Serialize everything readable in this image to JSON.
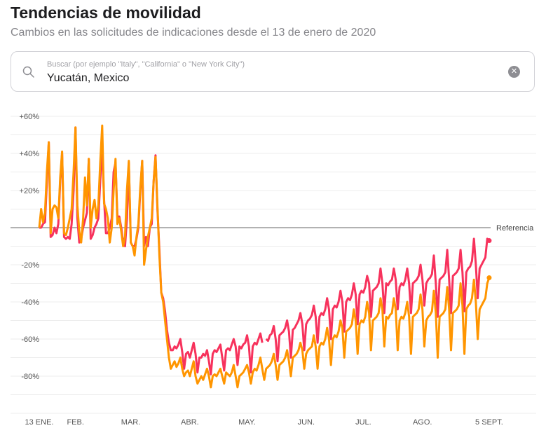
{
  "header": {
    "title": "Tendencias de movilidad",
    "subtitle": "Cambios en las solicitudes de indicaciones desde el 13 de enero de 2020"
  },
  "search": {
    "placeholder": "Buscar (por ejemplo \"Italy\", \"California\" o \"New York City\")",
    "value": "Yucatán, Mexico",
    "icon": "search-icon",
    "clear_icon": "clear-icon"
  },
  "chart_data": {
    "type": "line",
    "dates": {
      "start": "2020-01-13",
      "end": "2020-09-05",
      "step": "1 day"
    },
    "ylim": [
      -100,
      60
    ],
    "grid": true,
    "y_ticks": [
      {
        "value": 60,
        "label": "+60%"
      },
      {
        "value": 40,
        "label": "+40%"
      },
      {
        "value": 20,
        "label": "+20%"
      },
      {
        "value": -20,
        "label": "-20%"
      },
      {
        "value": -40,
        "label": "-40%"
      },
      {
        "value": -60,
        "label": "-60%"
      },
      {
        "value": -80,
        "label": "-80%"
      }
    ],
    "x_ticks": [
      {
        "day": 0,
        "label": "13 ENE."
      },
      {
        "day": 19,
        "label": "FEB."
      },
      {
        "day": 48,
        "label": "MAR."
      },
      {
        "day": 79,
        "label": "ABR."
      },
      {
        "day": 109,
        "label": "MAY."
      },
      {
        "day": 140,
        "label": "JUN."
      },
      {
        "day": 170,
        "label": "JUL."
      },
      {
        "day": 201,
        "label": "AGO."
      },
      {
        "day": 236,
        "label": "5 SEPT."
      }
    ],
    "baseline": {
      "value": 0,
      "label": "Referencia"
    },
    "series": [
      {
        "color": "#f7325c",
        "values": [
          0,
          0,
          2,
          3,
          25,
          46,
          -5,
          -4,
          0,
          -3,
          2,
          25,
          40,
          -5,
          -6,
          -5,
          -6,
          2,
          20,
          54,
          5,
          -8,
          -6,
          0,
          4,
          8,
          37,
          -6,
          -4,
          0,
          2,
          5,
          25,
          44,
          15,
          -3,
          -3,
          0,
          5,
          30,
          35,
          6,
          6,
          0,
          -8,
          -10,
          5,
          35,
          -8,
          -10,
          -10,
          -6,
          0,
          20,
          36,
          -10,
          -5,
          -10,
          0,
          2,
          25,
          39,
          10,
          -12,
          -35,
          -38,
          -45,
          -55,
          -62,
          -66,
          -66,
          -64,
          -65,
          -63,
          -60,
          -67,
          -76,
          -68,
          -67,
          -70,
          -66,
          -62,
          -68,
          -78,
          -70,
          -70,
          -68,
          -69,
          -66,
          -72,
          -79,
          -68,
          -66,
          -67,
          -65,
          -63,
          -70,
          -77,
          -66,
          -65,
          -66,
          -63,
          -60,
          -64,
          -74,
          -64,
          -65,
          -63,
          -62,
          -58,
          -64,
          -78,
          -64,
          -62,
          -63,
          -60,
          -57,
          -62,
          null,
          -60,
          -61,
          -58,
          -57,
          -53,
          -60,
          -72,
          -58,
          -57,
          -56,
          -54,
          -50,
          -56,
          -70,
          -55,
          -54,
          -52,
          -50,
          -46,
          -52,
          -66,
          -52,
          -50,
          -49,
          -47,
          -42,
          -48,
          -62,
          -48,
          -46,
          -47,
          -44,
          -38,
          -44,
          -60,
          -44,
          -42,
          -43,
          -40,
          -34,
          -40,
          -56,
          -40,
          -38,
          -39,
          -36,
          -30,
          -36,
          -52,
          -36,
          -34,
          -35,
          -32,
          -26,
          -30,
          -48,
          -34,
          -33,
          -32,
          -30,
          -22,
          -30,
          -46,
          -30,
          -31,
          -29,
          -28,
          -22,
          -28,
          -44,
          -32,
          -30,
          -31,
          -28,
          -22,
          -30,
          -46,
          -30,
          -29,
          -28,
          -26,
          -20,
          -28,
          -42,
          -30,
          -28,
          -27,
          -25,
          -15,
          -30,
          -48,
          -28,
          -27,
          -26,
          -24,
          -12,
          -28,
          -46,
          -26,
          -25,
          -24,
          -22,
          -12,
          -24,
          -45,
          -24,
          -22,
          -21,
          -18,
          -6,
          -20,
          -38,
          -22,
          -20,
          -18,
          -16,
          -6,
          -7
        ]
      },
      {
        "color": "#ff9500",
        "values": [
          0,
          10,
          3,
          8,
          30,
          46,
          -3,
          10,
          12,
          11,
          5,
          27,
          41,
          -3,
          -4,
          0,
          5,
          10,
          30,
          54,
          12,
          -2,
          -8,
          5,
          27,
          12,
          37,
          0,
          10,
          15,
          5,
          12,
          35,
          55,
          13,
          10,
          5,
          -8,
          0,
          20,
          37,
          2,
          5,
          -2,
          -10,
          -5,
          20,
          36,
          -8,
          -10,
          -15,
          -5,
          2,
          22,
          36,
          -20,
          -12,
          -5,
          0,
          5,
          25,
          38,
          12,
          -15,
          -35,
          -40,
          -50,
          -60,
          -70,
          -76,
          -74,
          -72,
          -75,
          -73,
          -70,
          -76,
          -80,
          -78,
          -77,
          -80,
          -76,
          -72,
          -80,
          -84,
          -82,
          -80,
          -82,
          -79,
          -76,
          -80,
          -86,
          -80,
          -79,
          -80,
          -78,
          -76,
          -80,
          -84,
          -78,
          -79,
          -80,
          -78,
          -74,
          -80,
          -86,
          -80,
          -79,
          -78,
          -76,
          -74,
          -78,
          -84,
          -78,
          -76,
          -77,
          -74,
          -70,
          -76,
          -82,
          -76,
          -75,
          -74,
          -72,
          -68,
          -74,
          -82,
          -74,
          -73,
          -72,
          -70,
          -66,
          -72,
          -80,
          -70,
          -69,
          -68,
          -66,
          -62,
          -66,
          -76,
          -68,
          -66,
          -65,
          -64,
          -58,
          -64,
          -76,
          -64,
          -62,
          -63,
          -60,
          -54,
          -60,
          -74,
          -60,
          -58,
          -59,
          -56,
          -50,
          -54,
          -70,
          -56,
          -55,
          -54,
          -52,
          -44,
          -50,
          -68,
          -52,
          -50,
          -51,
          -48,
          -40,
          -46,
          -66,
          -50,
          -49,
          -48,
          -46,
          -38,
          -44,
          -64,
          -48,
          -49,
          -47,
          -46,
          -38,
          -44,
          -66,
          -50,
          -48,
          -49,
          -46,
          -40,
          -48,
          -68,
          -48,
          -47,
          -46,
          -44,
          -36,
          -44,
          -64,
          -50,
          -48,
          -47,
          -45,
          -34,
          -46,
          -70,
          -48,
          -47,
          -46,
          -44,
          -32,
          -44,
          -66,
          -46,
          -45,
          -44,
          -42,
          -30,
          -42,
          -68,
          -44,
          -42,
          -41,
          -38,
          -28,
          -40,
          -60,
          -44,
          -42,
          -40,
          -38,
          -30,
          -27
        ]
      }
    ]
  }
}
